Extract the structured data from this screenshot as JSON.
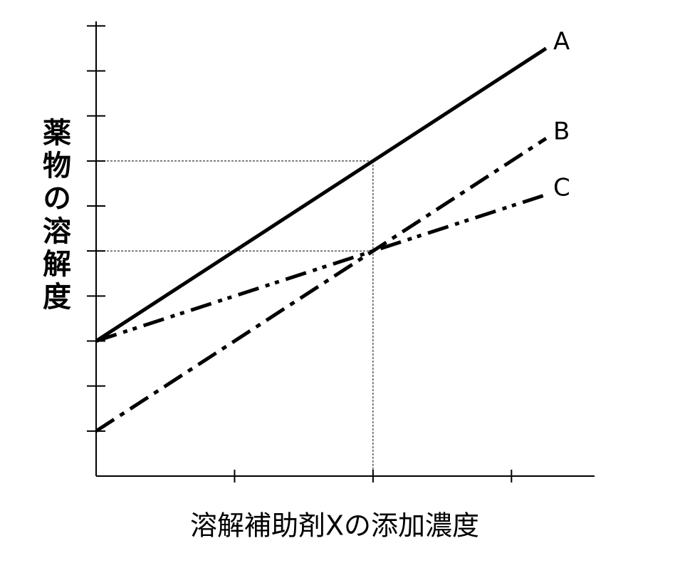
{
  "chart_data": {
    "type": "line",
    "x_label": "溶解補助剤Xの添加濃度",
    "y_label": "薬物の溶解度",
    "x": [
      0,
      2,
      3.25
    ],
    "series": [
      {
        "name": "A",
        "color": "#000000",
        "style": "solid",
        "values": [
          3,
          7,
          9.5
        ]
      },
      {
        "name": "B",
        "color": "#000000",
        "style": "dash-dot",
        "values": [
          1,
          5,
          7.5
        ]
      },
      {
        "name": "C",
        "color": "#000000",
        "style": "dash-dot-dot",
        "values": [
          3,
          5,
          6.25
        ]
      }
    ],
    "xlim": [
      0,
      3.6
    ],
    "ylim": [
      0,
      10.1
    ],
    "xticks": [
      1,
      2,
      3
    ],
    "yticks": [
      1,
      2,
      3,
      4,
      5,
      6,
      7,
      8,
      9,
      10
    ],
    "tick_labels": false,
    "guides": {
      "x": [
        2
      ],
      "y": [
        5,
        7
      ]
    }
  }
}
